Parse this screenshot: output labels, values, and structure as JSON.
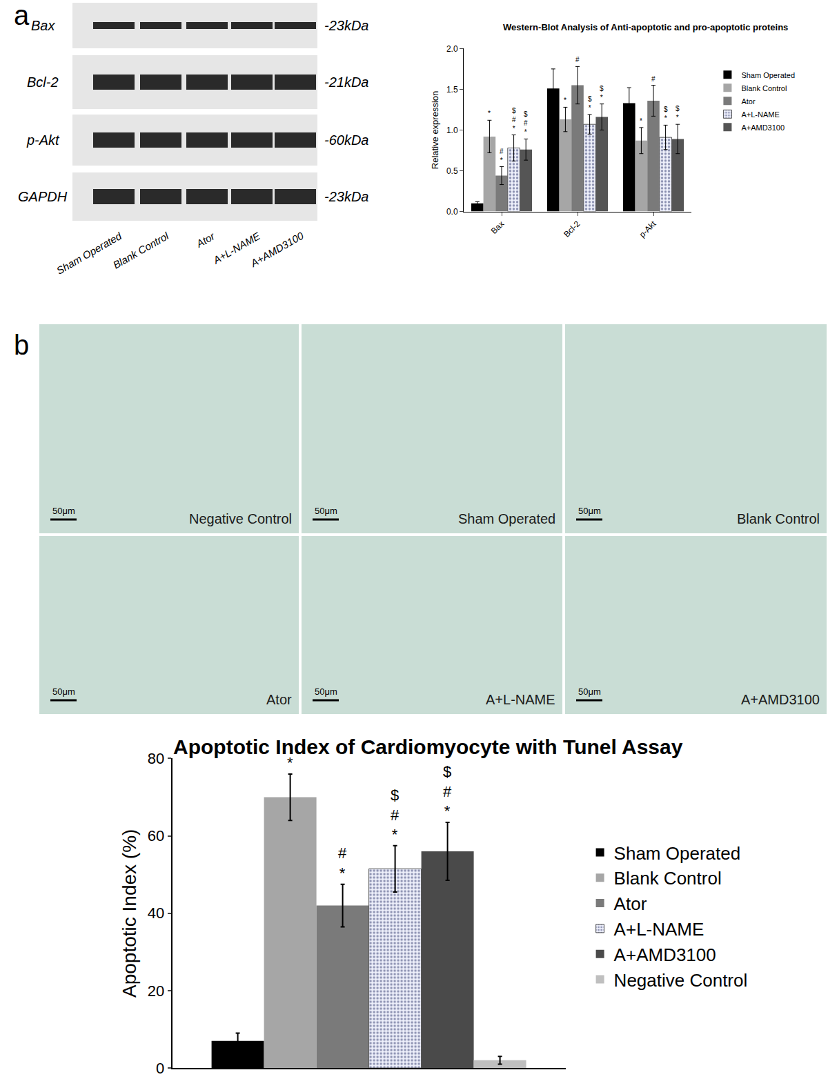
{
  "panel_labels": [
    "a",
    "b"
  ],
  "western_blot": {
    "rows": [
      {
        "protein": "Bax",
        "size": "-23kDa"
      },
      {
        "protein": "Bcl-2",
        "size": "-21kDa"
      },
      {
        "protein": "p-Akt",
        "size": "-60kDa"
      },
      {
        "protein": "GAPDH",
        "size": "-23kDa"
      }
    ],
    "lanes": [
      "Sham Operated",
      "Blank Control",
      "Ator",
      "A+L-NAME",
      "A+AMD3100"
    ]
  },
  "micrographs": {
    "panels": [
      "Negative Control",
      "Sham Operated",
      "Blank Control",
      "Ator",
      "A+L-NAME",
      "A+AMD3100"
    ],
    "scale_bar": "50μm"
  },
  "chart_data": [
    {
      "type": "bar",
      "title": "Western-Blot Analysis of Anti-apoptotic and pro-apoptotic proteins",
      "y_label": "Relative expression",
      "categories": [
        "Bax",
        "Bcl-2",
        "p-Akt"
      ],
      "series": [
        {
          "name": "Sham Operated",
          "color": "#000000",
          "values": [
            0.1,
            1.51,
            1.33
          ],
          "errors": [
            0.02,
            0.24,
            0.19
          ],
          "marks": [
            null,
            null,
            null
          ]
        },
        {
          "name": "Blank Control",
          "color": "#a6a6a6",
          "values": [
            0.92,
            1.13,
            0.87
          ],
          "errors": [
            0.2,
            0.15,
            0.16
          ],
          "marks": [
            [
              "*"
            ],
            [
              "*"
            ],
            [
              "*"
            ]
          ]
        },
        {
          "name": "Ator",
          "color": "#7a7a7a",
          "values": [
            0.44,
            1.55,
            1.36
          ],
          "errors": [
            0.11,
            0.23,
            0.19
          ],
          "marks": [
            [
              "#",
              "*"
            ],
            [
              "#"
            ],
            [
              "#"
            ]
          ]
        },
        {
          "name": "A+L-NAME",
          "color": "#eef0fb",
          "marker": "dots",
          "values": [
            0.78,
            1.07,
            0.91
          ],
          "errors": [
            0.16,
            0.12,
            0.15
          ],
          "marks": [
            [
              "$",
              "#",
              "*"
            ],
            [
              "$",
              "*"
            ],
            [
              "$",
              "*"
            ]
          ]
        },
        {
          "name": "A+AMD3100",
          "color": "#555555",
          "values": [
            0.76,
            1.16,
            0.89
          ],
          "errors": [
            0.13,
            0.16,
            0.18
          ],
          "marks": [
            [
              "$",
              "#",
              "*"
            ],
            [
              "$",
              "*"
            ],
            [
              "$",
              "*"
            ]
          ]
        }
      ],
      "ylim": [
        0,
        2
      ],
      "yticks": [
        {
          "value": 0,
          "label": "0.0"
        },
        {
          "value": 0.5,
          "label": "0.5"
        },
        {
          "value": 1,
          "label": "1.0"
        },
        {
          "value": 1.5,
          "label": "1.5"
        },
        {
          "value": 2,
          "label": "2.0"
        }
      ],
      "legend": "right",
      "grid": false
    },
    {
      "type": "bar",
      "title": "Apoptotic Index of Cardiomyocyte with Tunel Assay",
      "y_label": "Apoptotic Index (%)",
      "categories": [
        null
      ],
      "series": [
        {
          "name": "Sham Operated",
          "color": "#000000",
          "values": [
            7
          ],
          "errors": [
            2
          ],
          "marks": [
            null
          ]
        },
        {
          "name": "Blank Control",
          "color": "#a6a6a6",
          "values": [
            70
          ],
          "errors": [
            6
          ],
          "marks": [
            [
              "*"
            ]
          ]
        },
        {
          "name": "Ator",
          "color": "#7a7a7a",
          "values": [
            42
          ],
          "errors": [
            5.5
          ],
          "marks": [
            [
              "#",
              "*"
            ]
          ]
        },
        {
          "name": "A+L-NAME",
          "color": "#eef0fb",
          "marker": "dots",
          "values": [
            51.5
          ],
          "errors": [
            6
          ],
          "marks": [
            [
              "$",
              "#",
              "*"
            ]
          ]
        },
        {
          "name": "A+AMD3100",
          "color": "#4a4a4a",
          "values": [
            56
          ],
          "errors": [
            7.5
          ],
          "marks": [
            [
              "$",
              "#",
              "*"
            ]
          ]
        },
        {
          "name": "Negative Control",
          "color": "#bfbfbf",
          "values": [
            2
          ],
          "errors": [
            1
          ],
          "marks": [
            null
          ]
        }
      ],
      "ylim": [
        0,
        80
      ],
      "yticks": [
        0,
        20,
        40,
        60,
        80
      ],
      "legend": "right",
      "grid": false,
      "tick_labels": "y"
    }
  ]
}
